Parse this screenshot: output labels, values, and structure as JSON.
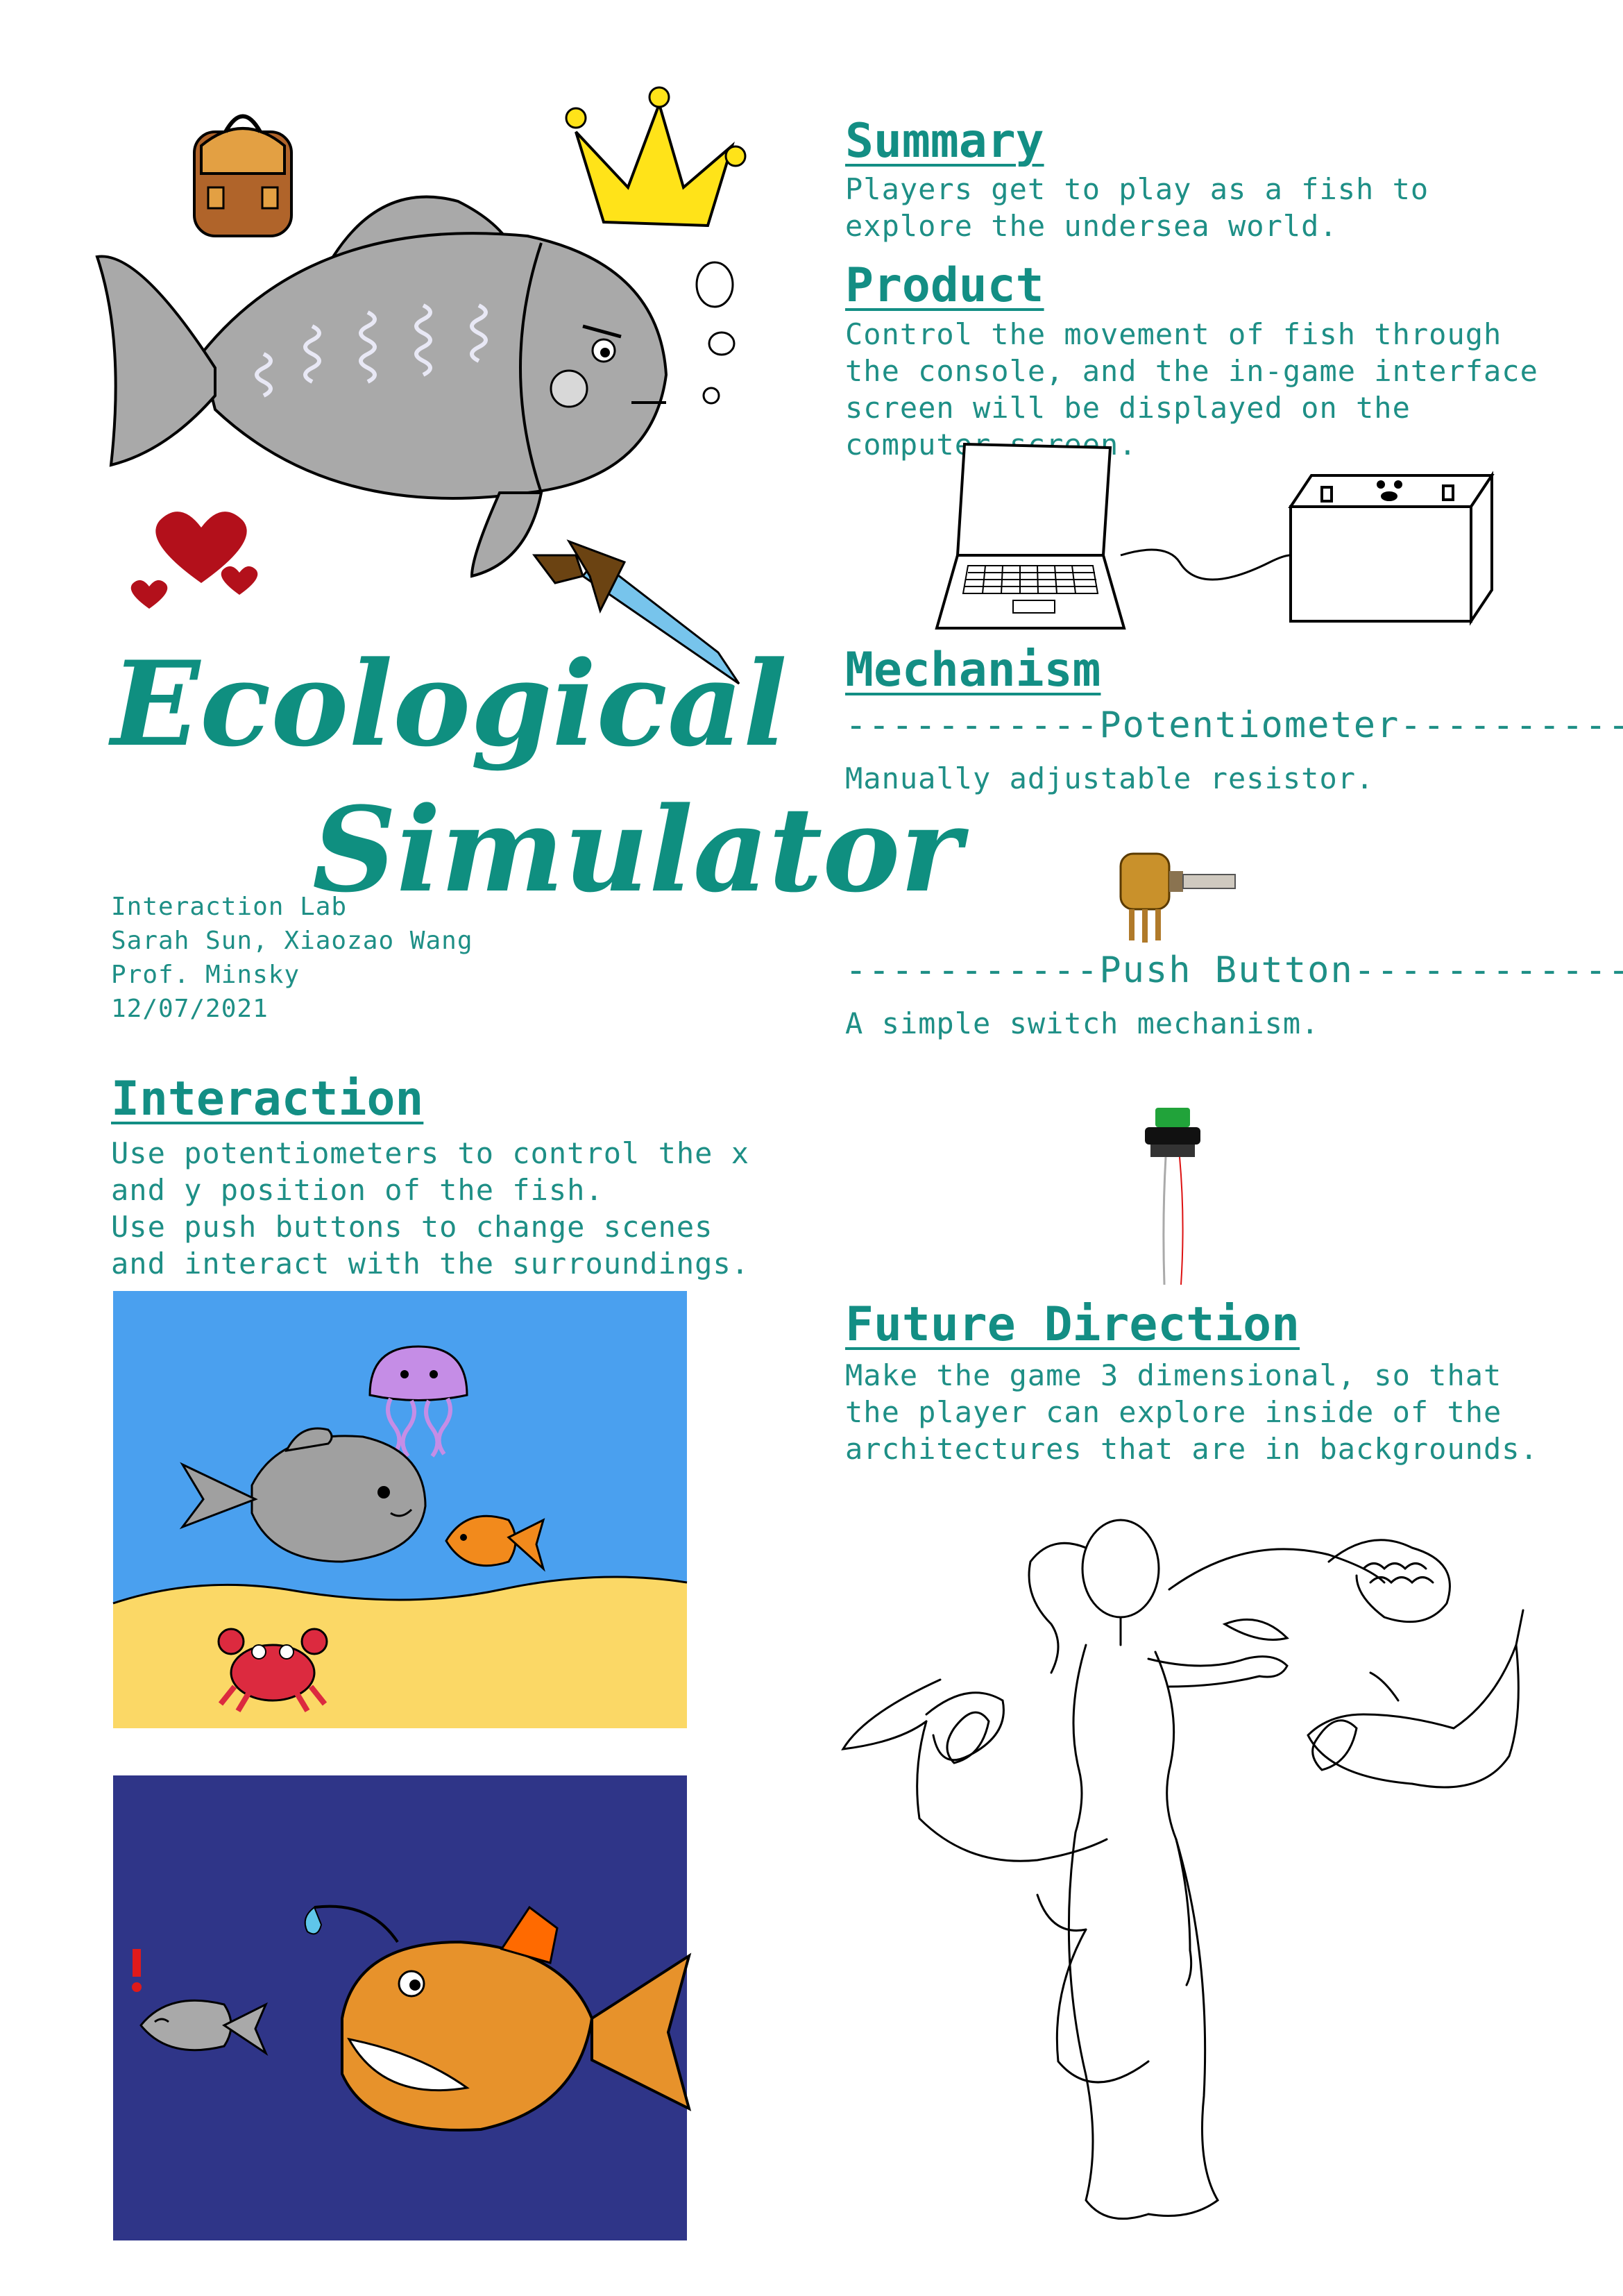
{
  "title": {
    "line1": "Ecological",
    "line2": "Simulator"
  },
  "credits": [
    "Interaction Lab",
    "Sarah Sun, Xiaozao Wang",
    "Prof. Minsky",
    "12/07/2021"
  ],
  "summary": {
    "heading": "Summary",
    "text": "Players get to play as a fish to explore the undersea world."
  },
  "product": {
    "heading": "Product",
    "text": "Control the movement of fish through the console, and the in-game interface screen will be displayed on the computer screen."
  },
  "mechanism": {
    "heading": "Mechanism",
    "potentiometer_heading": "-----------Potentiometer----------",
    "potentiometer_text": "Manually adjustable resistor.",
    "button_heading": "-----------Push Button------------",
    "button_text": "A simple switch mechanism."
  },
  "interaction": {
    "heading": "Interaction",
    "line1": "Use potentiometers to control the x and y position of the fish.",
    "line2": "Use push buttons to change scenes and interact with the surroundings."
  },
  "future": {
    "heading": "Future Direction",
    "text": "Make the game 3 dimensional, so that the player can explore inside of the architectures that are in backgrounds."
  },
  "colors": {
    "accent": "#138e84",
    "scene1_water": "#4aa0ef",
    "scene1_sand": "#fbd866",
    "scene2_water": "#2f3588",
    "fish_gray": "#a9a9a9",
    "angler_orange": "#e7922b"
  },
  "icons": [
    "backpack-icon",
    "crown-icon",
    "heart-icon",
    "sword-icon",
    "bubbles-icon"
  ]
}
